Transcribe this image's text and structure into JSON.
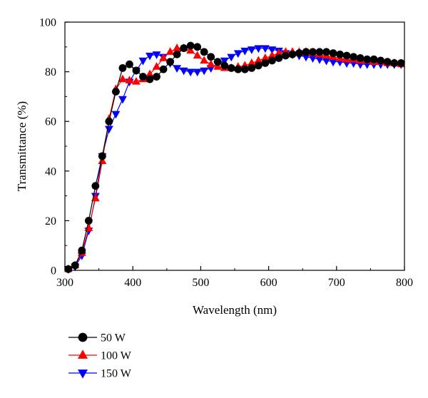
{
  "chart_data": {
    "type": "line",
    "title": "",
    "xlabel": "Wavelength (nm)",
    "ylabel": "Transmittance (%)",
    "xlim": [
      300,
      800
    ],
    "ylim": [
      0,
      100
    ],
    "x_ticks": [
      "300",
      "400",
      "500",
      "600",
      "700",
      "800"
    ],
    "y_ticks": [
      "0",
      "20",
      "40",
      "60",
      "80",
      "100"
    ],
    "grid": false,
    "legend_position": "bottom-left",
    "series": [
      {
        "name": "50 W",
        "color": "#000000",
        "marker": "circle",
        "points": [
          [
            305,
            0.5
          ],
          [
            315,
            2
          ],
          [
            325,
            8
          ],
          [
            335,
            20
          ],
          [
            345,
            34
          ],
          [
            355,
            46
          ],
          [
            365,
            60
          ],
          [
            375,
            72
          ],
          [
            385,
            81.5
          ],
          [
            395,
            83
          ],
          [
            405,
            80.5
          ],
          [
            415,
            78
          ],
          [
            425,
            77
          ],
          [
            435,
            78
          ],
          [
            445,
            81
          ],
          [
            455,
            84
          ],
          [
            465,
            87
          ],
          [
            475,
            89.5
          ],
          [
            485,
            90.5
          ],
          [
            495,
            90
          ],
          [
            505,
            88
          ],
          [
            515,
            86
          ],
          [
            525,
            84
          ],
          [
            535,
            82.5
          ],
          [
            545,
            81.5
          ],
          [
            555,
            81
          ],
          [
            565,
            81
          ],
          [
            575,
            81.5
          ],
          [
            585,
            82.5
          ],
          [
            595,
            83.5
          ],
          [
            605,
            84.5
          ],
          [
            615,
            85.5
          ],
          [
            625,
            86.5
          ],
          [
            635,
            87
          ],
          [
            645,
            87.5
          ],
          [
            655,
            88
          ],
          [
            665,
            88
          ],
          [
            675,
            88
          ],
          [
            685,
            88
          ],
          [
            695,
            87.5
          ],
          [
            705,
            87
          ],
          [
            715,
            86.5
          ],
          [
            725,
            86
          ],
          [
            735,
            85.5
          ],
          [
            745,
            85
          ],
          [
            755,
            85
          ],
          [
            765,
            84.5
          ],
          [
            775,
            84
          ],
          [
            785,
            83.5
          ],
          [
            795,
            83.5
          ]
        ]
      },
      {
        "name": "100 W",
        "color": "#ff0000",
        "marker": "triangle-up",
        "points": [
          [
            305,
            0.5
          ],
          [
            315,
            2
          ],
          [
            325,
            7
          ],
          [
            335,
            17
          ],
          [
            345,
            29
          ],
          [
            355,
            44
          ],
          [
            365,
            61
          ],
          [
            375,
            73
          ],
          [
            385,
            77
          ],
          [
            395,
            76.5
          ],
          [
            405,
            76
          ],
          [
            415,
            77
          ],
          [
            425,
            79
          ],
          [
            435,
            82
          ],
          [
            445,
            85.5
          ],
          [
            455,
            88
          ],
          [
            465,
            89.5
          ],
          [
            475,
            89.5
          ],
          [
            485,
            88.5
          ],
          [
            495,
            86.5
          ],
          [
            505,
            84.5
          ],
          [
            515,
            83
          ],
          [
            525,
            82
          ],
          [
            535,
            81.5
          ],
          [
            545,
            81.5
          ],
          [
            555,
            82
          ],
          [
            565,
            82.5
          ],
          [
            575,
            83.5
          ],
          [
            585,
            84.5
          ],
          [
            595,
            85.5
          ],
          [
            605,
            86.5
          ],
          [
            615,
            87.5
          ],
          [
            625,
            88
          ],
          [
            635,
            88
          ],
          [
            645,
            88
          ],
          [
            655,
            88
          ],
          [
            665,
            87.5
          ],
          [
            675,
            87
          ],
          [
            685,
            86.5
          ],
          [
            695,
            86
          ],
          [
            705,
            85.5
          ],
          [
            715,
            85
          ],
          [
            725,
            85
          ],
          [
            735,
            84.5
          ],
          [
            745,
            84.5
          ],
          [
            755,
            84
          ],
          [
            765,
            84
          ],
          [
            775,
            83.5
          ],
          [
            785,
            83.5
          ],
          [
            795,
            83
          ]
        ]
      },
      {
        "name": "150 W",
        "color": "#0000ff",
        "marker": "triangle-down",
        "points": [
          [
            305,
            0.5
          ],
          [
            315,
            1.5
          ],
          [
            325,
            6
          ],
          [
            335,
            16
          ],
          [
            345,
            30
          ],
          [
            355,
            46
          ],
          [
            365,
            57
          ],
          [
            375,
            63
          ],
          [
            385,
            69
          ],
          [
            395,
            76
          ],
          [
            405,
            80.5
          ],
          [
            415,
            84.5
          ],
          [
            425,
            86.5
          ],
          [
            435,
            87
          ],
          [
            445,
            86
          ],
          [
            455,
            83.5
          ],
          [
            465,
            81.5
          ],
          [
            475,
            80.5
          ],
          [
            485,
            80
          ],
          [
            495,
            80
          ],
          [
            505,
            80.5
          ],
          [
            515,
            81.5
          ],
          [
            525,
            83
          ],
          [
            535,
            84.5
          ],
          [
            545,
            86
          ],
          [
            555,
            87.5
          ],
          [
            565,
            88.5
          ],
          [
            575,
            89
          ],
          [
            585,
            89.5
          ],
          [
            595,
            89.5
          ],
          [
            605,
            89
          ],
          [
            615,
            88.5
          ],
          [
            625,
            87.5
          ],
          [
            635,
            87
          ],
          [
            645,
            86.5
          ],
          [
            655,
            86
          ],
          [
            665,
            85.5
          ],
          [
            675,
            85
          ],
          [
            685,
            84.5
          ],
          [
            695,
            84
          ],
          [
            705,
            84
          ],
          [
            715,
            83.5
          ],
          [
            725,
            83.5
          ],
          [
            735,
            83
          ],
          [
            745,
            83
          ],
          [
            755,
            83
          ],
          [
            765,
            83
          ],
          [
            775,
            83
          ],
          [
            785,
            83
          ],
          [
            795,
            83
          ]
        ]
      }
    ]
  }
}
